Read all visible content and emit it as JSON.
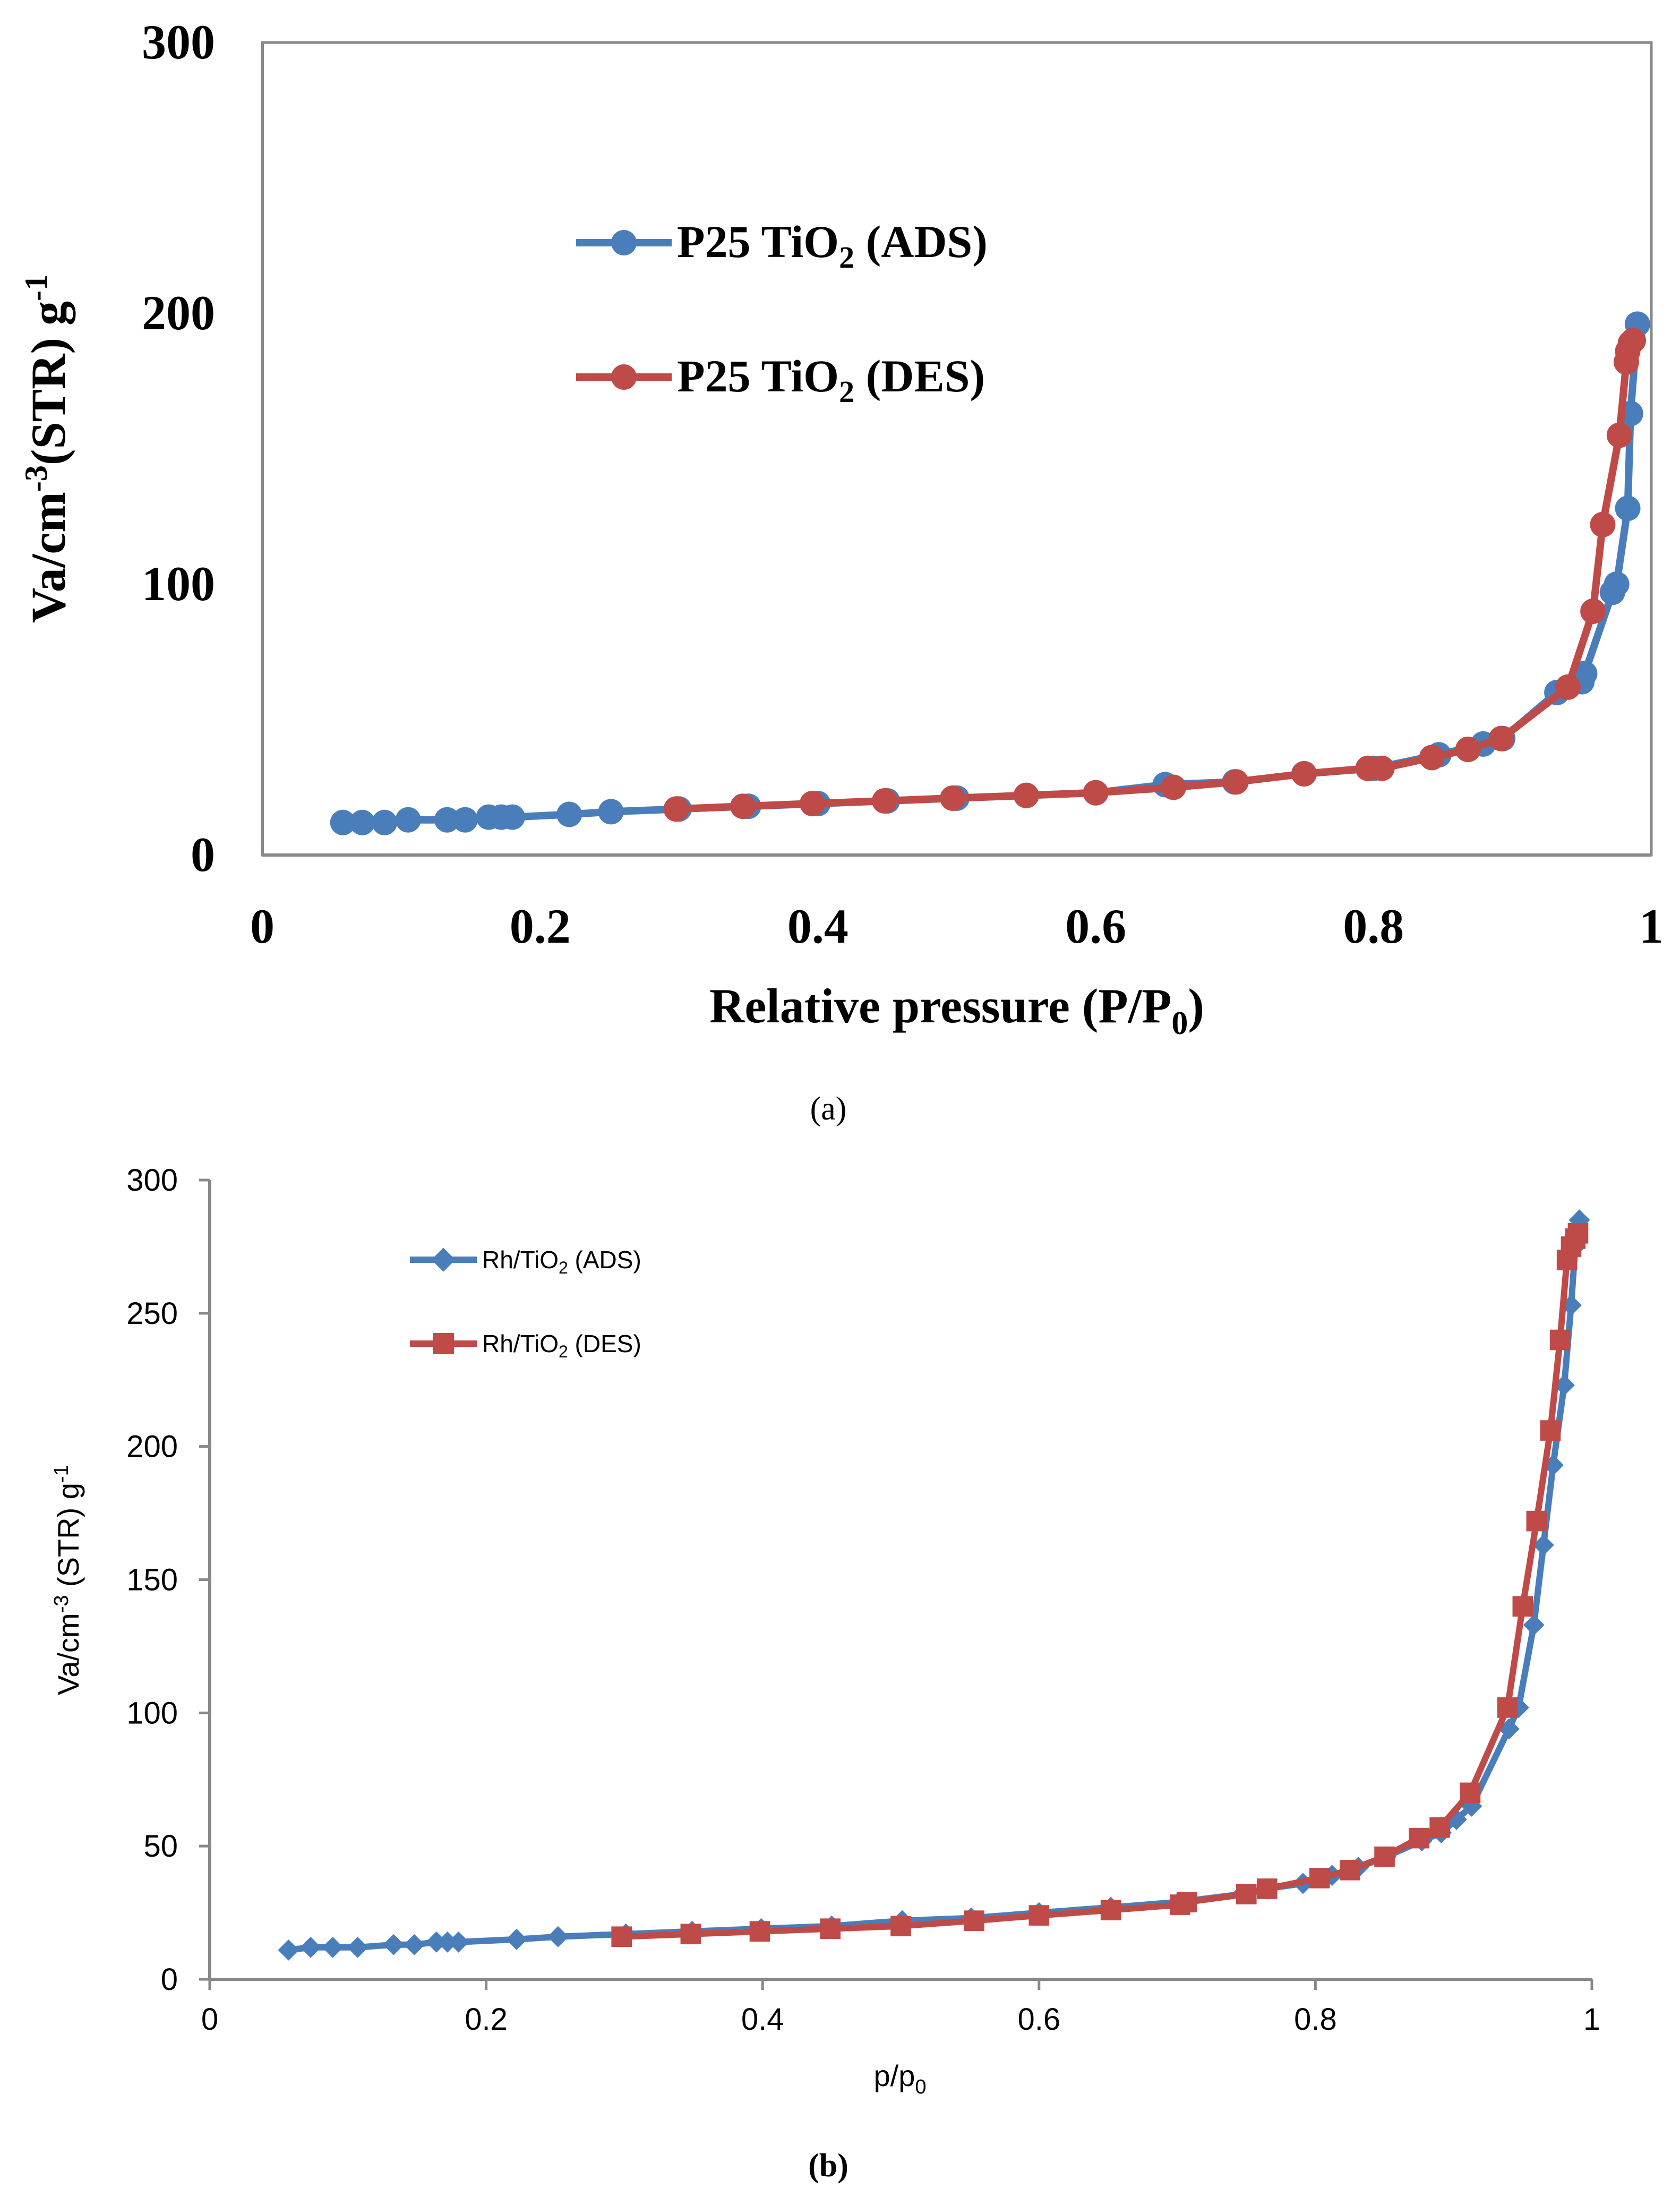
{
  "chart_data": [
    {
      "type": "line",
      "panel_label": "(a)",
      "xlabel": "Relative pressure (P/P",
      "xlabel_sub": "0",
      "xlabel_tail": ")",
      "ylabel": "Va/cm",
      "ylabel_sup": "-3",
      "ylabel_mid": "(STR) g",
      "ylabel_sup2": "-1",
      "xlim": [
        0,
        1
      ],
      "ylim": [
        0,
        300
      ],
      "xticks": [
        0,
        0.2,
        0.4,
        0.6,
        0.8,
        1
      ],
      "xtick_labels": [
        "0",
        "0.2",
        "0.4",
        "0.6",
        "0.8",
        "1"
      ],
      "yticks": [
        0,
        100,
        200,
        300
      ],
      "ytick_labels": [
        "0",
        "100",
        "200",
        "300"
      ],
      "grid": false,
      "legend_position": "upper-left",
      "series": [
        {
          "name": "P25 TiO2 (ADS)",
          "legend_prefix": "P25 TiO",
          "legend_sub": "2",
          "legend_suffix": " (ADS)",
          "color": "#4a7ebb",
          "marker": "circle",
          "x": [
            0.058,
            0.072,
            0.088,
            0.105,
            0.133,
            0.146,
            0.163,
            0.172,
            0.18,
            0.221,
            0.251,
            0.3,
            0.35,
            0.4,
            0.45,
            0.5,
            0.55,
            0.6,
            0.65,
            0.7,
            0.75,
            0.8,
            0.847,
            0.879,
            0.893,
            0.932,
            0.95,
            0.952,
            0.972,
            0.975,
            0.983,
            0.985,
            0.99
          ],
          "y": [
            12,
            12,
            12,
            13,
            13,
            13,
            14,
            14,
            14,
            15,
            16,
            17,
            18,
            19,
            20,
            21,
            22,
            23,
            26,
            27,
            30,
            32,
            37,
            41,
            43,
            60,
            64,
            67,
            97,
            100,
            128,
            163,
            196
          ]
        },
        {
          "name": "P25 TiO2 (DES)",
          "legend_prefix": "P25 TiO",
          "legend_sub": "2",
          "legend_suffix": " (DES)",
          "color": "#be4b48",
          "marker": "circle",
          "x": [
            0.298,
            0.346,
            0.396,
            0.448,
            0.497,
            0.55,
            0.6,
            0.656,
            0.701,
            0.75,
            0.796,
            0.806,
            0.842,
            0.868,
            0.892,
            0.94,
            0.958,
            0.965,
            0.977,
            0.982,
            0.983,
            0.985,
            0.987
          ],
          "y": [
            17,
            18,
            19,
            20,
            21,
            22,
            23,
            25,
            27,
            30,
            32,
            32,
            36,
            39,
            43,
            62,
            90,
            122,
            155,
            182,
            186,
            189,
            190
          ]
        }
      ]
    },
    {
      "type": "line",
      "panel_label": "(b)",
      "xlabel": "p/p",
      "xlabel_sub": "0",
      "ylabel": "Va/cm",
      "ylabel_sup": "-3",
      "ylabel_mid": " (STR) g",
      "ylabel_sup2": "-1",
      "xlim": [
        0,
        1
      ],
      "ylim": [
        0,
        300
      ],
      "xticks": [
        0,
        0.2,
        0.4,
        0.6,
        0.8,
        1
      ],
      "xtick_labels": [
        "0",
        "0.2",
        "0.4",
        "0.6",
        "0.8",
        "1"
      ],
      "yticks": [
        0,
        50,
        100,
        150,
        200,
        250,
        300
      ],
      "ytick_labels": [
        "0",
        "50",
        "100",
        "150",
        "200",
        "250",
        "300"
      ],
      "grid": false,
      "legend_position": "upper-left",
      "series": [
        {
          "name": "Rh/TiO2 (ADS)",
          "legend_prefix": "Rh/TiO",
          "legend_sub": "2",
          "legend_suffix": " (ADS)",
          "color": "#4a7ebb",
          "marker": "diamond",
          "x": [
            0.057,
            0.073,
            0.089,
            0.107,
            0.133,
            0.148,
            0.164,
            0.172,
            0.18,
            0.222,
            0.252,
            0.301,
            0.349,
            0.399,
            0.45,
            0.501,
            0.551,
            0.6,
            0.652,
            0.701,
            0.747,
            0.765,
            0.791,
            0.812,
            0.831,
            0.851,
            0.877,
            0.891,
            0.902,
            0.913,
            0.94,
            0.947,
            0.958,
            0.965,
            0.972,
            0.98,
            0.985,
            0.988,
            0.991
          ],
          "y": [
            11,
            12,
            12,
            12,
            13,
            13,
            14,
            14,
            14,
            15,
            16,
            17,
            18,
            19,
            20,
            22,
            23,
            25,
            27,
            29,
            32,
            34,
            36,
            39,
            42,
            46,
            52,
            55,
            60,
            65,
            94,
            102,
            133,
            163,
            193,
            223,
            253,
            275,
            285
          ]
        },
        {
          "name": "Rh/TiO2 (DES)",
          "legend_prefix": "Rh/TiO",
          "legend_sub": "2",
          "legend_suffix": " (DES)",
          "color": "#be4b48",
          "marker": "square",
          "x": [
            0.298,
            0.348,
            0.398,
            0.449,
            0.5,
            0.553,
            0.6,
            0.652,
            0.702,
            0.707,
            0.75,
            0.765,
            0.803,
            0.825,
            0.85,
            0.875,
            0.89,
            0.912,
            0.939,
            0.95,
            0.96,
            0.97,
            0.977,
            0.982,
            0.985,
            0.988,
            0.99
          ],
          "y": [
            16,
            17,
            18,
            19,
            20,
            22,
            24,
            26,
            28,
            29,
            32,
            34,
            38,
            41,
            46,
            53,
            57,
            70,
            102,
            140,
            172,
            206,
            240,
            270,
            275,
            278,
            280
          ]
        }
      ]
    }
  ]
}
